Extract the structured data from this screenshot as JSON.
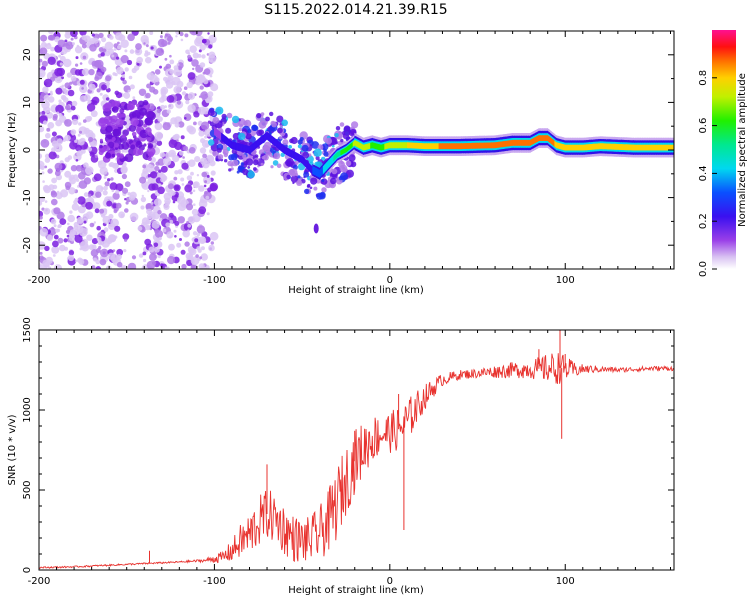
{
  "title": "S115.2022.014.21.39.R15",
  "chart_data": [
    {
      "type": "heatmap",
      "title": "S115.2022.014.21.39.R15",
      "xlabel": "Height of straight line (km)",
      "ylabel": "Frequency (Hz)",
      "xlim": [
        -200,
        162
      ],
      "ylim": [
        -25,
        25
      ],
      "xticks": [
        "-200",
        "-100",
        "0",
        "100"
      ],
      "xtick_values": [
        -200,
        -100,
        0,
        100
      ],
      "yticks": [
        "20",
        "10",
        "0",
        "-10",
        "-20"
      ],
      "ytick_values": [
        20,
        10,
        0,
        -10,
        -20
      ],
      "colorbar": {
        "label": "Normalized spectral amplitude",
        "range": [
          0,
          1
        ],
        "ticks": [
          "0.0",
          "0.2",
          "0.4",
          "0.6",
          "0.8"
        ],
        "tick_values": [
          0.0,
          0.2,
          0.4,
          0.6,
          0.8
        ],
        "colormap": "rainbow (white-purple-blue-cyan-green-yellow-red-magenta)"
      },
      "ridge": {
        "x": [
          -100,
          -90,
          -80,
          -70,
          -60,
          -50,
          -45,
          -40,
          -35,
          -30,
          -25,
          -20,
          -15,
          -10,
          -5,
          0,
          10,
          20,
          40,
          60,
          70,
          80,
          85,
          90,
          95,
          100,
          110,
          120,
          140,
          162
        ],
        "freq": [
          4,
          1,
          0,
          3,
          0,
          -2,
          -4,
          -5,
          -3,
          -1,
          0,
          1.5,
          0.5,
          1,
          0.5,
          1,
          1,
          0.8,
          0.8,
          1,
          1.5,
          1.5,
          2.5,
          2.5,
          1,
          0.5,
          0.5,
          0.8,
          0.5,
          0.5
        ],
        "amplitude": [
          0.2,
          0.25,
          0.25,
          0.3,
          0.3,
          0.3,
          0.3,
          0.4,
          0.45,
          0.6,
          0.65,
          0.75,
          0.75,
          0.7,
          0.7,
          0.75,
          0.8,
          0.85,
          0.9,
          0.9,
          0.9,
          0.9,
          0.9,
          0.9,
          0.85,
          0.85,
          0.85,
          0.85,
          0.85,
          0.8
        ]
      }
    },
    {
      "type": "line",
      "xlabel": "Height of straight line (km)",
      "ylabel": "SNR (10 * v/v)",
      "xlim": [
        -200,
        162
      ],
      "ylim": [
        0,
        1500
      ],
      "xticks": [
        "-200",
        "-100",
        "0",
        "100"
      ],
      "xtick_values": [
        -200,
        -100,
        0,
        100
      ],
      "yticks": [
        "0",
        "500",
        "1000",
        "1500"
      ],
      "ytick_values": [
        0,
        500,
        1000,
        1500
      ],
      "color": "#e8332f",
      "series": [
        {
          "x": [
            -200,
            -180,
            -160,
            -140,
            -120,
            -105,
            -95,
            -90,
            -85,
            -80,
            -75,
            -70,
            -65,
            -60,
            -55,
            -50,
            -45,
            -40,
            -35,
            -30,
            -25,
            -20,
            -15,
            -10,
            -5,
            0,
            5,
            10,
            15,
            20,
            25,
            30,
            40,
            50,
            60,
            70,
            80,
            90,
            95,
            100,
            105,
            110,
            120,
            130,
            140,
            150,
            162
          ],
          "y": [
            15,
            20,
            30,
            40,
            50,
            60,
            80,
            120,
            180,
            220,
            300,
            350,
            320,
            250,
            200,
            180,
            190,
            230,
            300,
            420,
            560,
            680,
            760,
            820,
            850,
            860,
            880,
            930,
            1010,
            1080,
            1140,
            1190,
            1220,
            1230,
            1240,
            1250,
            1255,
            1260,
            1265,
            1260,
            1250,
            1255,
            1255,
            1250,
            1255,
            1260,
            1260
          ],
          "amp": [
            5,
            5,
            5,
            5,
            5,
            10,
            40,
            70,
            110,
            140,
            160,
            160,
            160,
            160,
            150,
            140,
            150,
            170,
            200,
            230,
            220,
            200,
            170,
            150,
            130,
            130,
            140,
            140,
            110,
            80,
            60,
            40,
            30,
            30,
            40,
            50,
            60,
            90,
            110,
            80,
            50,
            30,
            20,
            15,
            15,
            15,
            15
          ]
        }
      ],
      "spikes": [
        {
          "x": -137,
          "y": 120
        },
        {
          "x": -70,
          "y": 660
        },
        {
          "x": -20,
          "y": 870
        },
        {
          "x": 5,
          "y": 1100
        },
        {
          "x": 8,
          "y": 250
        },
        {
          "x": 85,
          "y": 1380
        },
        {
          "x": 97,
          "y": 1500
        },
        {
          "x": 98,
          "y": 820
        },
        {
          "x": 100,
          "y": 1350
        }
      ]
    }
  ]
}
